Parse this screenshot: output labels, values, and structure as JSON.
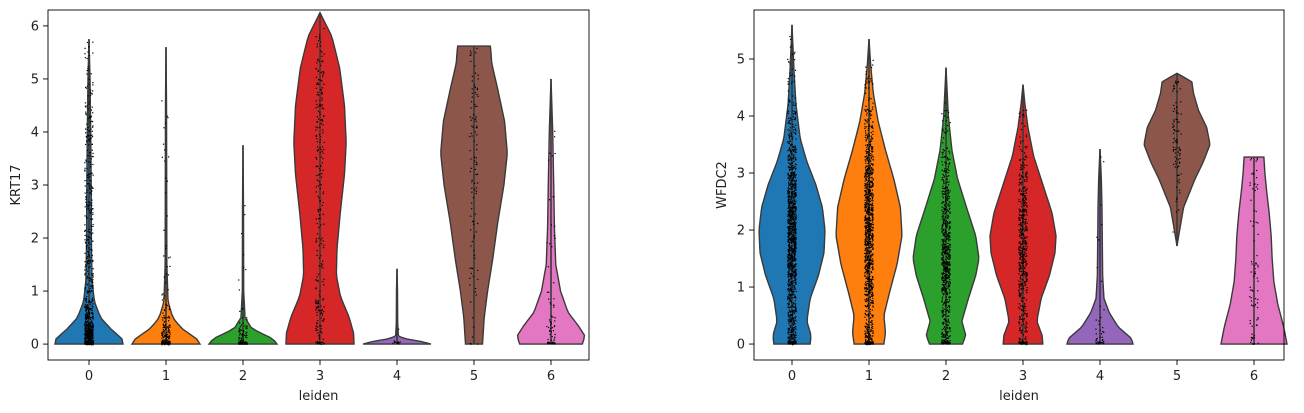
{
  "chart_data": [
    {
      "type": "violin",
      "xlabel": "leiden",
      "ylabel": "KRT17",
      "ylim": [
        -0.3,
        6.3
      ],
      "yticks": [
        0,
        1,
        2,
        3,
        4,
        5,
        6
      ],
      "categories": [
        "0",
        "1",
        "2",
        "3",
        "4",
        "5",
        "6"
      ],
      "colors": [
        "#1f77b4",
        "#ff7f0e",
        "#2ca02c",
        "#d62728",
        "#9467bd",
        "#8c564b",
        "#e377c2"
      ],
      "groups": [
        {
          "name": "0",
          "max": 5.75,
          "profile": [
            [
              0,
              1.0
            ],
            [
              0.1,
              0.97
            ],
            [
              0.3,
              0.62
            ],
            [
              0.5,
              0.34
            ],
            [
              0.8,
              0.16
            ],
            [
              1.2,
              0.09
            ],
            [
              2.0,
              0.07
            ],
            [
              3.0,
              0.065
            ],
            [
              4.0,
              0.05
            ],
            [
              5.0,
              0.03
            ],
            [
              5.75,
              0.0
            ]
          ],
          "points": 900,
          "zero_fraction": 0.15
        },
        {
          "name": "1",
          "max": 5.6,
          "profile": [
            [
              0,
              1.0
            ],
            [
              0.1,
              0.9
            ],
            [
              0.3,
              0.45
            ],
            [
              0.5,
              0.2
            ],
            [
              0.8,
              0.06
            ],
            [
              1.5,
              0.025
            ],
            [
              3.0,
              0.02
            ],
            [
              4.5,
              0.015
            ],
            [
              5.6,
              0.0
            ]
          ],
          "points": 360,
          "zero_fraction": 0.55
        },
        {
          "name": "2",
          "max": 3.75,
          "profile": [
            [
              0,
              1.0
            ],
            [
              0.1,
              0.88
            ],
            [
              0.2,
              0.55
            ],
            [
              0.3,
              0.25
            ],
            [
              0.5,
              0.06
            ],
            [
              1.0,
              0.02
            ],
            [
              2.5,
              0.015
            ],
            [
              3.75,
              0.0
            ]
          ],
          "points": 170,
          "zero_fraction": 0.6
        },
        {
          "name": "3",
          "max": 6.25,
          "profile": [
            [
              0,
              1.0
            ],
            [
              0.2,
              0.99
            ],
            [
              0.5,
              0.86
            ],
            [
              0.9,
              0.6
            ],
            [
              1.3,
              0.48
            ],
            [
              1.8,
              0.5
            ],
            [
              2.5,
              0.6
            ],
            [
              3.2,
              0.72
            ],
            [
              3.8,
              0.77
            ],
            [
              4.5,
              0.72
            ],
            [
              5.2,
              0.58
            ],
            [
              5.8,
              0.35
            ],
            [
              6.25,
              0.0
            ]
          ],
          "points": 280,
          "zero_fraction": 0.08
        },
        {
          "name": "4",
          "max": 1.42,
          "profile": [
            [
              0,
              1.0
            ],
            [
              0.05,
              0.7
            ],
            [
              0.1,
              0.25
            ],
            [
              0.15,
              0.04
            ],
            [
              0.4,
              0.02
            ],
            [
              1.0,
              0.015
            ],
            [
              1.42,
              0.0
            ]
          ],
          "points": 18,
          "zero_fraction": 0.7
        },
        {
          "name": "5",
          "max": 5.62,
          "profile": [
            [
              0,
              0.25
            ],
            [
              0.5,
              0.3
            ],
            [
              1.0,
              0.4
            ],
            [
              1.6,
              0.55
            ],
            [
              2.3,
              0.7
            ],
            [
              3.0,
              0.88
            ],
            [
              3.6,
              0.98
            ],
            [
              4.2,
              0.9
            ],
            [
              4.8,
              0.7
            ],
            [
              5.3,
              0.52
            ],
            [
              5.5,
              0.5
            ],
            [
              5.62,
              0.48
            ]
          ],
          "points": 110,
          "zero_fraction": 0.03
        },
        {
          "name": "6",
          "max": 5.0,
          "profile": [
            [
              0,
              0.92
            ],
            [
              0.15,
              1.0
            ],
            [
              0.35,
              0.8
            ],
            [
              0.6,
              0.5
            ],
            [
              1.0,
              0.28
            ],
            [
              1.5,
              0.14
            ],
            [
              2.2,
              0.1
            ],
            [
              3.0,
              0.08
            ],
            [
              4.0,
              0.05
            ],
            [
              5.0,
              0.0
            ]
          ],
          "points": 75,
          "zero_fraction": 0.25
        }
      ]
    },
    {
      "type": "violin",
      "xlabel": "leiden",
      "ylabel": "WFDC2",
      "ylim": [
        -0.28,
        5.86
      ],
      "yticks": [
        0,
        1,
        2,
        3,
        4,
        5
      ],
      "categories": [
        "0",
        "1",
        "2",
        "3",
        "4",
        "5",
        "6"
      ],
      "colors": [
        "#1f77b4",
        "#ff7f0e",
        "#2ca02c",
        "#d62728",
        "#9467bd",
        "#8c564b",
        "#e377c2"
      ],
      "groups": [
        {
          "name": "0",
          "max": 5.6,
          "profile": [
            [
              0,
              0.55
            ],
            [
              0.15,
              0.58
            ],
            [
              0.4,
              0.45
            ],
            [
              0.8,
              0.55
            ],
            [
              1.2,
              0.8
            ],
            [
              1.6,
              0.97
            ],
            [
              2.0,
              1.0
            ],
            [
              2.4,
              0.92
            ],
            [
              2.8,
              0.72
            ],
            [
              3.2,
              0.45
            ],
            [
              3.6,
              0.25
            ],
            [
              4.2,
              0.12
            ],
            [
              4.8,
              0.06
            ],
            [
              5.6,
              0.0
            ]
          ],
          "points": 1300,
          "zero_fraction": 0.05
        },
        {
          "name": "1",
          "max": 5.35,
          "profile": [
            [
              0,
              0.45
            ],
            [
              0.2,
              0.5
            ],
            [
              0.5,
              0.45
            ],
            [
              0.9,
              0.62
            ],
            [
              1.4,
              0.85
            ],
            [
              1.9,
              1.0
            ],
            [
              2.4,
              0.95
            ],
            [
              2.9,
              0.75
            ],
            [
              3.4,
              0.5
            ],
            [
              3.9,
              0.28
            ],
            [
              4.4,
              0.13
            ],
            [
              4.9,
              0.05
            ],
            [
              5.35,
              0.0
            ]
          ],
          "points": 1100,
          "zero_fraction": 0.05
        },
        {
          "name": "2",
          "max": 4.85,
          "profile": [
            [
              0,
              0.5
            ],
            [
              0.15,
              0.6
            ],
            [
              0.4,
              0.48
            ],
            [
              0.8,
              0.68
            ],
            [
              1.2,
              0.9
            ],
            [
              1.5,
              1.0
            ],
            [
              1.9,
              0.9
            ],
            [
              2.4,
              0.62
            ],
            [
              2.9,
              0.35
            ],
            [
              3.4,
              0.18
            ],
            [
              4.0,
              0.07
            ],
            [
              4.85,
              0.0
            ]
          ],
          "points": 750,
          "zero_fraction": 0.06
        },
        {
          "name": "3",
          "max": 4.55,
          "profile": [
            [
              0,
              0.6
            ],
            [
              0.15,
              0.58
            ],
            [
              0.4,
              0.42
            ],
            [
              0.8,
              0.55
            ],
            [
              1.2,
              0.8
            ],
            [
              1.6,
              0.97
            ],
            [
              1.9,
              1.0
            ],
            [
              2.3,
              0.88
            ],
            [
              2.8,
              0.6
            ],
            [
              3.3,
              0.32
            ],
            [
              3.8,
              0.15
            ],
            [
              4.2,
              0.06
            ],
            [
              4.55,
              0.0
            ]
          ],
          "points": 550,
          "zero_fraction": 0.08
        },
        {
          "name": "4",
          "max": 3.42,
          "profile": [
            [
              0,
              1.0
            ],
            [
              0.1,
              0.95
            ],
            [
              0.3,
              0.55
            ],
            [
              0.55,
              0.28
            ],
            [
              0.8,
              0.12
            ],
            [
              1.2,
              0.08
            ],
            [
              1.8,
              0.07
            ],
            [
              2.4,
              0.06
            ],
            [
              2.9,
              0.04
            ],
            [
              3.42,
              0.0
            ]
          ],
          "points": 45,
          "zero_fraction": 0.3
        },
        {
          "name": "5",
          "max": 4.75,
          "profile": [
            [
              1.72,
              0.0
            ],
            [
              2.0,
              0.08
            ],
            [
              2.4,
              0.2
            ],
            [
              2.9,
              0.55
            ],
            [
              3.2,
              0.8
            ],
            [
              3.5,
              1.0
            ],
            [
              3.8,
              0.9
            ],
            [
              4.1,
              0.65
            ],
            [
              4.4,
              0.5
            ],
            [
              4.6,
              0.45
            ],
            [
              4.75,
              0.0
            ]
          ],
          "points": 90,
          "zero_fraction": 0.0
        },
        {
          "name": "6",
          "max": 3.28,
          "profile": [
            [
              0,
              1.0
            ],
            [
              0.3,
              0.9
            ],
            [
              0.7,
              0.72
            ],
            [
              1.1,
              0.6
            ],
            [
              1.5,
              0.55
            ],
            [
              1.9,
              0.52
            ],
            [
              2.3,
              0.46
            ],
            [
              2.7,
              0.38
            ],
            [
              3.0,
              0.33
            ],
            [
              3.28,
              0.3
            ]
          ],
          "points": 85,
          "zero_fraction": 0.04
        }
      ]
    }
  ]
}
